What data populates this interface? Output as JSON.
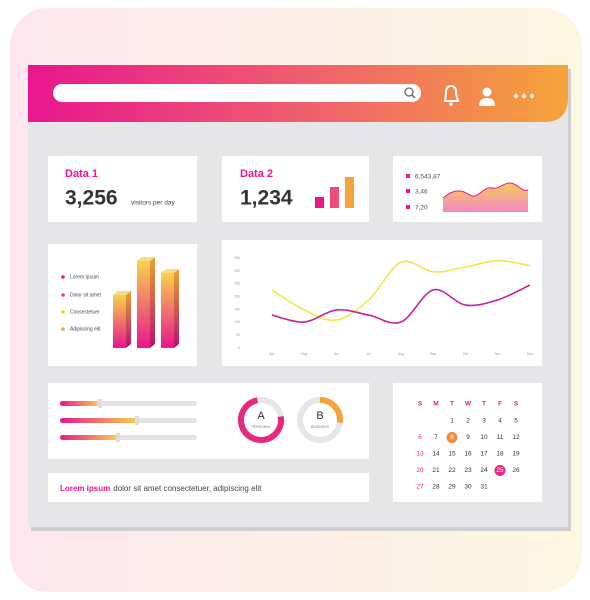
{
  "cards": {
    "data1": {
      "title": "Data 1",
      "value": "3,256",
      "unit": "visitors per day"
    },
    "data2": {
      "title": "Data 2",
      "value": "1,234"
    },
    "stats": [
      "6,543,87",
      "3,46",
      "7,20"
    ]
  },
  "legend": [
    "Lorem ipsum",
    "Dolor sit amet",
    "Consectetuer",
    "Adipiscing elit"
  ],
  "line_chart": {
    "categories": [
      "Apr",
      "May",
      "Jun",
      "Jul",
      "Aug",
      "Sep",
      "Oct",
      "Nov",
      "Dec"
    ],
    "ylim": [
      0,
      350
    ],
    "yticks": [
      0,
      50,
      100,
      150,
      200,
      250,
      300,
      350
    ],
    "series": [
      {
        "color": "#f2e64a",
        "values": [
          226,
          148,
          109,
          187,
          334,
          296,
          315,
          340,
          320
        ]
      },
      {
        "color": "#c4249c",
        "values": [
          128,
          101,
          148,
          128,
          101,
          226,
          167,
          187,
          245
        ]
      }
    ]
  },
  "donuts": [
    {
      "letter": "A",
      "label": "PERSONAL"
    },
    {
      "letter": "B",
      "label": "BUSINESS"
    }
  ],
  "footer_text": {
    "highlight": "Lorem ipsum",
    "rest": "dolor sit amet consectetuer, adipiscing elit"
  },
  "calendar": {
    "weekdays": [
      "S",
      "M",
      "T",
      "W",
      "T",
      "F",
      "S"
    ],
    "weeks": [
      [
        null,
        null,
        1,
        2,
        3,
        4,
        5
      ],
      [
        6,
        7,
        8,
        9,
        10,
        11,
        12
      ],
      [
        13,
        14,
        15,
        16,
        17,
        18,
        19
      ],
      [
        20,
        21,
        22,
        23,
        24,
        25,
        26
      ],
      [
        27,
        28,
        29,
        30,
        31,
        null,
        null
      ]
    ]
  }
}
